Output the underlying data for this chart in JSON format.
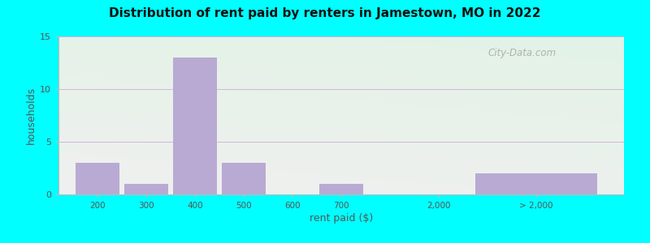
{
  "title": "Distribution of rent paid by renters in Jamestown, MO in 2022",
  "xlabel": "rent paid ($)",
  "ylabel": "households",
  "ylim": [
    0,
    15
  ],
  "yticks": [
    0,
    5,
    10,
    15
  ],
  "bar_color": "#b9aad4",
  "outer_bg": "#00ffff",
  "grid_color": "#d0b8d8",
  "watermark": "City-Data.com",
  "bar_positions": [
    1,
    2,
    3,
    4,
    5,
    6,
    10
  ],
  "bar_widths": [
    0.9,
    0.9,
    0.9,
    0.9,
    0.9,
    0.9,
    2.5
  ],
  "bar_values": [
    3,
    1,
    13,
    3,
    0,
    1,
    2
  ],
  "xtick_positions": [
    1,
    2,
    3,
    4,
    5,
    6,
    8,
    10
  ],
  "xtick_labels": [
    "200",
    "300",
    "400",
    "500",
    "600",
    "700",
    "2,000",
    "> 2,000"
  ],
  "xlim": [
    0.2,
    11.8
  ]
}
